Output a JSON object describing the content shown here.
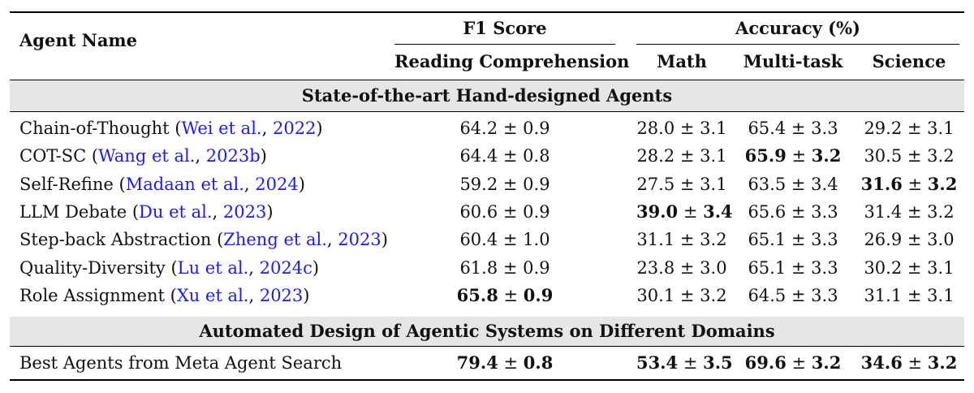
{
  "header": {
    "agent_name": "Agent Name",
    "f1_group": "F1 Score",
    "acc_group": "Accuracy (%)",
    "col_reading": "Reading Comprehension",
    "col_math": "Math",
    "col_multitask": "Multi-task",
    "col_science": "Science"
  },
  "section1": {
    "title": "State-of-the-art Hand-designed Agents"
  },
  "section2": {
    "title": "Automated Design of Agentic Systems on Different Domains"
  },
  "rows": [
    {
      "name": "Chain-of-Thought",
      "open": " (",
      "cite": "Wei et al.",
      "sep": ", ",
      "year": "2022",
      "close": ")",
      "reading": {
        "mean": "64.2",
        "pm": " ± ",
        "sd": "0.9"
      },
      "math": {
        "mean": "28.0",
        "pm": " ± ",
        "sd": "3.1"
      },
      "multitask": {
        "mean": "65.4",
        "pm": " ± ",
        "sd": "3.3"
      },
      "science": {
        "mean": "29.2",
        "pm": " ± ",
        "sd": "3.1"
      }
    },
    {
      "name": "COT-SC",
      "open": " (",
      "cite": "Wang et al.",
      "sep": ", ",
      "year": "2023b",
      "close": ")",
      "reading": {
        "mean": "64.4",
        "pm": " ± ",
        "sd": "0.8"
      },
      "math": {
        "mean": "28.2",
        "pm": " ± ",
        "sd": "3.1"
      },
      "multitask": {
        "mean": "65.9",
        "pm": " ± ",
        "sd": "3.2"
      },
      "science": {
        "mean": "30.5",
        "pm": " ± ",
        "sd": "3.2"
      }
    },
    {
      "name": "Self-Refine",
      "open": " (",
      "cite": "Madaan et al.",
      "sep": ", ",
      "year": "2024",
      "close": ")",
      "reading": {
        "mean": "59.2",
        "pm": " ± ",
        "sd": "0.9"
      },
      "math": {
        "mean": "27.5",
        "pm": " ± ",
        "sd": "3.1"
      },
      "multitask": {
        "mean": "63.5",
        "pm": " ± ",
        "sd": "3.4"
      },
      "science": {
        "mean": "31.6",
        "pm": " ± ",
        "sd": "3.2"
      }
    },
    {
      "name": "LLM Debate",
      "open": " (",
      "cite": "Du et al.",
      "sep": ", ",
      "year": "2023",
      "close": ")",
      "reading": {
        "mean": "60.6",
        "pm": " ± ",
        "sd": "0.9"
      },
      "math": {
        "mean": "39.0",
        "pm": " ± ",
        "sd": "3.4"
      },
      "multitask": {
        "mean": "65.6",
        "pm": " ± ",
        "sd": "3.3"
      },
      "science": {
        "mean": "31.4",
        "pm": " ± ",
        "sd": "3.2"
      }
    },
    {
      "name": "Step-back Abstraction",
      "open": " (",
      "cite": "Zheng et al.",
      "sep": ", ",
      "year": "2023",
      "close": ")",
      "reading": {
        "mean": "60.4",
        "pm": " ± ",
        "sd": "1.0"
      },
      "math": {
        "mean": "31.1",
        "pm": " ± ",
        "sd": "3.2"
      },
      "multitask": {
        "mean": "65.1",
        "pm": " ± ",
        "sd": "3.3"
      },
      "science": {
        "mean": "26.9",
        "pm": " ± ",
        "sd": "3.0"
      }
    },
    {
      "name": "Quality-Diversity",
      "open": " (",
      "cite": "Lu et al.",
      "sep": ", ",
      "year": "2024c",
      "close": ")",
      "reading": {
        "mean": "61.8",
        "pm": " ± ",
        "sd": "0.9"
      },
      "math": {
        "mean": "23.8",
        "pm": " ± ",
        "sd": "3.0"
      },
      "multitask": {
        "mean": "65.1",
        "pm": " ± ",
        "sd": "3.3"
      },
      "science": {
        "mean": "30.2",
        "pm": " ± ",
        "sd": "3.1"
      }
    },
    {
      "name": "Role Assignment",
      "open": " (",
      "cite": "Xu et al.",
      "sep": ", ",
      "year": "2023",
      "close": ")",
      "reading": {
        "mean": "65.8",
        "pm": " ± ",
        "sd": "0.9"
      },
      "math": {
        "mean": "30.1",
        "pm": " ± ",
        "sd": "3.2"
      },
      "multitask": {
        "mean": "64.5",
        "pm": " ± ",
        "sd": "3.3"
      },
      "science": {
        "mean": "31.1",
        "pm": " ± ",
        "sd": "3.1"
      }
    }
  ],
  "best_row": {
    "name": "Best Agents from Meta Agent Search",
    "reading": {
      "mean": "79.4",
      "pm": " ± ",
      "sd": "0.8"
    },
    "math": {
      "mean": "53.4",
      "pm": " ± ",
      "sd": "3.5"
    },
    "multitask": {
      "mean": "69.6",
      "pm": " ± ",
      "sd": "3.2"
    },
    "science": {
      "mean": "34.6",
      "pm": " ± ",
      "sd": "3.2"
    }
  }
}
